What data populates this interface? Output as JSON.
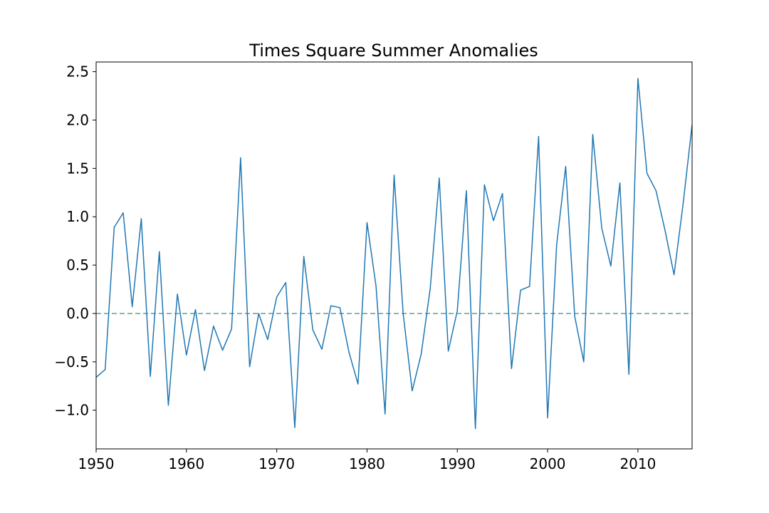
{
  "chart_data": {
    "type": "line",
    "title": "Times Square Summer Anomalies",
    "xlabel": "",
    "ylabel": "",
    "xlim": [
      1950,
      2016
    ],
    "ylim": [
      -1.4,
      2.6
    ],
    "xticks": [
      1950,
      1960,
      1970,
      1980,
      1990,
      2000,
      2010
    ],
    "yticks": [
      -1.0,
      -0.5,
      0.0,
      0.5,
      1.0,
      1.5,
      2.0,
      2.5
    ],
    "yticklabels": [
      "−1.0",
      "−0.5",
      "0.0",
      "0.5",
      "1.0",
      "1.5",
      "2.0",
      "2.5"
    ],
    "grid": false,
    "series": [
      {
        "color": "#1f77b4",
        "x": [
          1950,
          1951,
          1952,
          1953,
          1954,
          1955,
          1956,
          1957,
          1958,
          1959,
          1960,
          1961,
          1962,
          1963,
          1964,
          1965,
          1966,
          1967,
          1968,
          1969,
          1970,
          1971,
          1972,
          1973,
          1974,
          1975,
          1976,
          1977,
          1978,
          1979,
          1980,
          1981,
          1982,
          1983,
          1984,
          1985,
          1986,
          1987,
          1988,
          1989,
          1990,
          1991,
          1992,
          1993,
          1994,
          1995,
          1996,
          1997,
          1998,
          1999,
          2000,
          2001,
          2002,
          2003,
          2004,
          2005,
          2006,
          2007,
          2008,
          2009,
          2010,
          2011,
          2012,
          2013,
          2014,
          2015,
          2016
        ],
        "y": [
          -0.66,
          -0.58,
          0.89,
          1.04,
          0.07,
          0.98,
          -0.65,
          0.64,
          -0.95,
          0.2,
          -0.43,
          0.04,
          -0.59,
          -0.13,
          -0.38,
          -0.16,
          1.61,
          -0.55,
          0.0,
          -0.27,
          0.17,
          0.32,
          -1.18,
          0.59,
          -0.17,
          -0.37,
          0.08,
          0.06,
          -0.4,
          -0.73,
          0.94,
          0.28,
          -1.04,
          1.43,
          0.0,
          -0.8,
          -0.42,
          0.26,
          1.4,
          -0.39,
          0.03,
          1.27,
          -1.19,
          1.33,
          0.96,
          1.24,
          -0.57,
          0.24,
          0.28,
          1.83,
          -1.08,
          0.71,
          1.52,
          -0.03,
          -0.5,
          1.85,
          0.88,
          0.49,
          1.35,
          -0.63,
          2.43,
          1.45,
          1.27,
          0.86,
          0.4,
          1.13,
          1.95
        ]
      }
    ],
    "reference_line": {
      "y": 0.0,
      "style": "dashed",
      "color": "#5f9ea0"
    }
  }
}
